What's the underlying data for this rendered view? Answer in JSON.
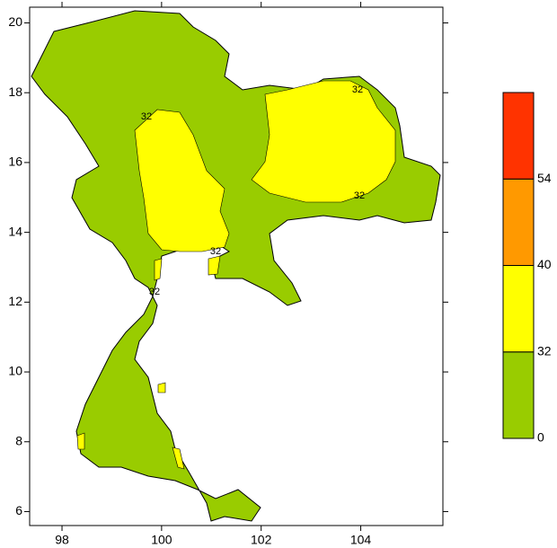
{
  "map": {
    "xlim": [
      97.35,
      105.65
    ],
    "ylim": [
      5.6,
      20.45
    ],
    "xticks": [
      98,
      100,
      102,
      104
    ],
    "yticks": [
      6,
      8,
      10,
      12,
      14,
      16,
      18,
      20
    ],
    "land_color": "#99cc00",
    "contour_labels": [
      "32",
      "32",
      "32",
      "32",
      "32"
    ],
    "colorbar": {
      "levels": [
        0,
        32,
        40,
        54
      ],
      "colors": [
        "#99cc00",
        "#ffff00",
        "#ff9900",
        "#ff3300"
      ]
    }
  }
}
